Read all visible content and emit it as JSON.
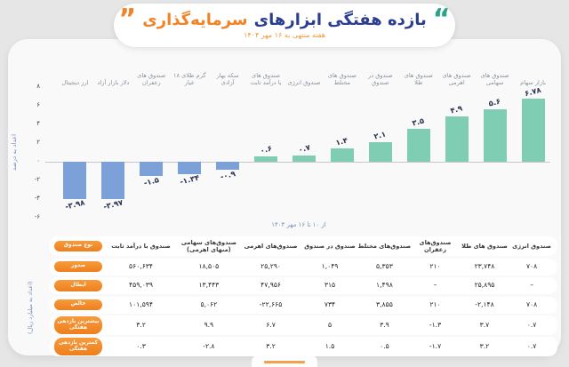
{
  "header": {
    "title_blue": "بازده هفتگی ابزارهای",
    "title_orange": "سرمایه‌گذاری",
    "subtitle": "هفته منتهی به ۱۶ مهر ۱۴۰۴",
    "open_quote_color": "#2aa38b",
    "close_quote_color": "#f08326"
  },
  "chart_data": {
    "type": "bar",
    "title": "بازده هفتگی ابزارهای سرمایه‌گذاری",
    "ylabel": "اعداد به درصد",
    "xlabel": "از ۱۰ تا ۱۶ مهر ۱۴۰۴",
    "ylim": [
      -6,
      8
    ],
    "grid": false,
    "legend": false,
    "yticks": [
      8,
      6,
      4,
      2,
      0,
      -2,
      -4,
      -6
    ],
    "ytick_labels": [
      "۸",
      "۶",
      "۴",
      "۲",
      "۰",
      "-۲",
      "-۴",
      "-۶"
    ],
    "categories": [
      "ارز دیجیتال",
      "دلار بازار آزاد",
      "صندوق های زعفران",
      "گرم طلای ۱۸ عیار",
      "سکه بهار آزادی",
      "صندوق های با درآمد ثابت",
      "صندوق انرژی",
      "صندوق های مختلط",
      "صندوق در صندوق",
      "صندوق های طلا",
      "صندوق های اهرمی",
      "صندوق های سهامی",
      "بازار سهام"
    ],
    "category_lines": [
      [
        "ارز دیجیتال"
      ],
      [
        "دلار بازار آزاد"
      ],
      [
        "صندوق های",
        "زعفران"
      ],
      [
        "گرم طلای ۱۸",
        "عیار"
      ],
      [
        "سکه بهار",
        "آزادی"
      ],
      [
        "صندوق های",
        "با درآمد ثابت"
      ],
      [
        "صندوق انرژی"
      ],
      [
        "صندوق های",
        "مختلط"
      ],
      [
        "صندوق در",
        "صندوق"
      ],
      [
        "صندوق های",
        "طلا"
      ],
      [
        "صندوق های",
        "اهرمی"
      ],
      [
        "صندوق های",
        "سهامی"
      ],
      [
        "بازار سهام"
      ]
    ],
    "values": [
      -3.98,
      -3.97,
      -1.5,
      -1.34,
      -0.9,
      0.6,
      0.7,
      1.4,
      2.1,
      3.5,
      4.9,
      5.6,
      6.78
    ],
    "value_labels": [
      "-۳.۹۸",
      "-۳.۹۷",
      "-۱.۵",
      "-۱.۳۴",
      "-۰.۹",
      "۰.۶",
      "۰.۷",
      "۱.۴",
      "۲.۱",
      "۳.۵",
      "۴.۹",
      "۵.۶",
      "۶.۷۸"
    ],
    "positive_color": "#7fcdb2",
    "negative_color": "#7ca0d8"
  },
  "table": {
    "unit_note": "(اعداد به میلیارد ریال)",
    "corner_label": "نوع صندوق",
    "column_lines": [
      [
        "صندوق با درآمد ثابت"
      ],
      [
        "صندوق‌های سهامی",
        "(منهای اهرمی)"
      ],
      [
        "صندوق‌های اهرمی"
      ],
      [
        "صندوق در صندوق"
      ],
      [
        "صندوق‌های مختلط"
      ],
      [
        "صندوق‌های زعفران"
      ],
      [
        "صندوق های طلا"
      ],
      [
        "صندوق انرژی"
      ]
    ],
    "rows": [
      {
        "label_lines": [
          "صدور"
        ],
        "cells": [
          "۵۶۰,۶۳۴",
          "۱۸,۵۰۵",
          "۲۵,۲۹۰",
          "۱,۰۴۹",
          "۵,۳۵۳",
          "۲۱۰",
          "۲۳,۷۴۸",
          "۷۰۸"
        ]
      },
      {
        "label_lines": [
          "ابطال"
        ],
        "cells": [
          "۴۵۹,۰۳۹",
          "۱۳,۴۴۳",
          "۴۷,۹۵۶",
          "۳۱۵",
          "۱,۴۹۸",
          "–",
          "۲۵,۸۹۵",
          "–"
        ]
      },
      {
        "label_lines": [
          "خالص"
        ],
        "cells": [
          "۱۰۱,۵۹۴",
          "۵,۰۶۲",
          "-۲۲,۶۶۵",
          "۷۳۴",
          "۳,۸۵۵",
          "۲۱۰",
          "-۲,۱۴۸",
          "۷۰۸"
        ]
      },
      {
        "label_lines": [
          "بیشترین بازدهی",
          "هفتگی"
        ],
        "cells": [
          "۳.۲",
          "۹.۹",
          "۶.۷",
          "۵",
          "۳.۹",
          "-۱.۳",
          "۳.۷",
          "۰.۷"
        ]
      },
      {
        "label_lines": [
          "کمترین بازدهی",
          "هفتگی"
        ],
        "cells": [
          "۰.۳",
          "-۲.۸",
          "۳.۲",
          "۱.۵",
          "۰.۵",
          "-۱.۷",
          "۳.۲",
          "۰.۷"
        ]
      }
    ]
  }
}
